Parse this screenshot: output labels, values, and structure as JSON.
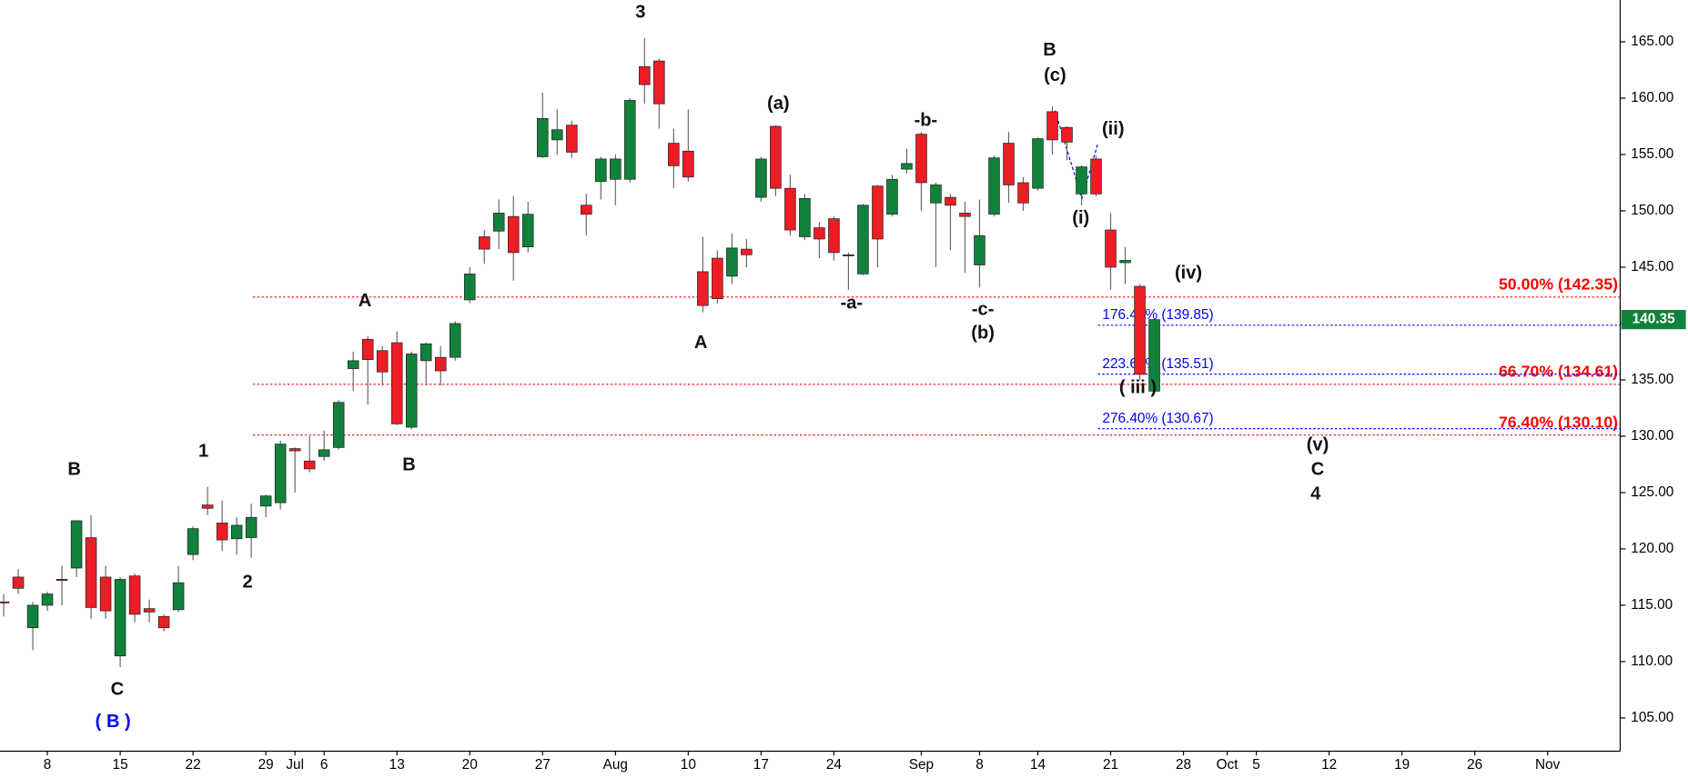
{
  "chart_data": {
    "type": "candlestick",
    "categories": [
      null,
      null,
      null,
      "8",
      null,
      null,
      null,
      null,
      "15",
      null,
      null,
      null,
      null,
      "22",
      null,
      null,
      null,
      null,
      "29",
      null,
      "Jul",
      null,
      "6",
      null,
      null,
      null,
      null,
      "13",
      null,
      null,
      null,
      null,
      "20",
      null,
      null,
      null,
      null,
      "27",
      null,
      null,
      null,
      null,
      "Aug",
      null,
      null,
      null,
      null,
      "10",
      null,
      null,
      null,
      null,
      "17",
      null,
      null,
      null,
      null,
      "24",
      null,
      null,
      null,
      null,
      null,
      "Sep",
      null,
      null,
      null,
      "8",
      null,
      null,
      null,
      "14",
      null,
      null,
      null,
      null,
      "21",
      null,
      null,
      null,
      null,
      "28",
      null,
      null,
      "Oct",
      null,
      "5",
      null,
      null,
      null,
      null,
      "12",
      null,
      null,
      null,
      null,
      "19",
      null,
      null,
      null,
      null,
      "26",
      null,
      null,
      null,
      null,
      "Nov",
      null,
      null,
      null,
      null
    ],
    "open": [
      115.3,
      117.5,
      113,
      115,
      117.3,
      118.3,
      121,
      117.5,
      110.5,
      117.6,
      114.7,
      114,
      114.6,
      119.5,
      123.9,
      122.3,
      120.9,
      121,
      123.8,
      124.1,
      128.9,
      127.8,
      128.2,
      129,
      136,
      138.6,
      137.6,
      138.3,
      130.8,
      136.7,
      137,
      137,
      142.1,
      147.7,
      148.2,
      149.5,
      146.8,
      154.8,
      156.3,
      157.6,
      150.5,
      152.6,
      152.8,
      152.8,
      162.8,
      163.3,
      156,
      155.3,
      144.6,
      145.8,
      144.2,
      146.6,
      151.2,
      157.5,
      152,
      147.7,
      148.5,
      149.3,
      146,
      144.4,
      152.2,
      149.7,
      153.7,
      156.8,
      150.7,
      151.2,
      149.8,
      145.2,
      149.7,
      156,
      152.5,
      152,
      158.8,
      157.4,
      151.5,
      154.6,
      148.3,
      145.4,
      143.3,
      134,
      null,
      null,
      null,
      null,
      null,
      null,
      null,
      null,
      null,
      null,
      null,
      null,
      null,
      null,
      null,
      null,
      null,
      null,
      null,
      null,
      null,
      null,
      null,
      null,
      null,
      null,
      null,
      null,
      null,
      null,
      null
    ],
    "high": [
      116,
      118.2,
      115.3,
      116.2,
      118.5,
      122.5,
      123,
      118.5,
      117.5,
      117.8,
      115.5,
      114.2,
      118.5,
      122,
      125.5,
      124.3,
      122.8,
      124,
      124.8,
      129.6,
      129,
      130,
      130.5,
      133.2,
      137.5,
      138.9,
      138,
      139.3,
      137.5,
      138.3,
      138,
      140.2,
      145,
      148.3,
      151,
      151.3,
      150.8,
      160.5,
      159,
      158,
      151.5,
      154.8,
      155,
      160,
      165.3,
      163.5,
      157.3,
      159,
      147.7,
      146.5,
      148,
      147.5,
      154.8,
      157.6,
      153.2,
      151.5,
      149,
      149.5,
      146.3,
      150.6,
      152.3,
      153.2,
      155.5,
      157,
      152.5,
      151.5,
      150.8,
      151,
      154.9,
      157,
      153,
      156.5,
      159.3,
      157.5,
      154,
      154.9,
      149.8,
      146.8,
      143.5,
      140.4,
      null,
      null,
      null,
      null,
      null,
      null,
      null,
      null,
      null,
      null,
      null,
      null,
      null,
      null,
      null,
      null,
      null,
      null,
      null,
      null,
      null,
      null,
      null,
      null,
      null,
      null,
      null,
      null,
      null,
      null,
      null
    ],
    "low": [
      114,
      116,
      111,
      114.5,
      115,
      117.5,
      113.8,
      113.8,
      109.5,
      113.5,
      113.5,
      112.7,
      114.4,
      119,
      123,
      119.8,
      119.5,
      119.2,
      122.8,
      123.5,
      125,
      126.8,
      127.8,
      128.8,
      134,
      132.8,
      134.5,
      131,
      130.6,
      134.5,
      134.5,
      136.7,
      141.8,
      145.3,
      146.6,
      143.8,
      146.3,
      154.7,
      155,
      154.7,
      147.8,
      151,
      150.5,
      152.5,
      159.5,
      157.3,
      152,
      152.6,
      141,
      141.8,
      143.5,
      145,
      150.8,
      151.3,
      147.8,
      147.4,
      145.8,
      145.6,
      143,
      144.3,
      145,
      149.5,
      153.3,
      150,
      145,
      146.5,
      144.5,
      143.2,
      149.5,
      150.7,
      150,
      151.8,
      155,
      154.5,
      150.5,
      151.3,
      143,
      143.5,
      135,
      133.8,
      null,
      null,
      null,
      null,
      null,
      null,
      null,
      null,
      null,
      null,
      null,
      null,
      null,
      null,
      null,
      null,
      null,
      null,
      null,
      null,
      null,
      null,
      null,
      null,
      null,
      null,
      null,
      null,
      null,
      null,
      null
    ],
    "close": [
      115.2,
      116.5,
      115,
      116,
      117.2,
      122.5,
      114.8,
      114.5,
      117.3,
      114.2,
      114.4,
      113,
      117,
      121.8,
      123.6,
      120.8,
      122.1,
      122.8,
      124.7,
      129.3,
      128.7,
      127.1,
      128.8,
      133,
      136.7,
      136.8,
      135.7,
      131.1,
      137.3,
      138.2,
      135.8,
      140,
      144.4,
      146.6,
      149.8,
      146.3,
      149.7,
      158.2,
      157.2,
      155.2,
      149.7,
      154.6,
      154.6,
      159.8,
      161.2,
      159.5,
      154,
      153,
      141.6,
      142.2,
      146.7,
      146.1,
      154.6,
      152,
      148.3,
      151.1,
      147.5,
      146.3,
      146.1,
      150.5,
      147.5,
      152.8,
      154.2,
      152.5,
      152.3,
      150.5,
      149.5,
      147.8,
      154.7,
      152.3,
      150.7,
      156.4,
      156.3,
      156.1,
      153.9,
      151.5,
      145,
      145.6,
      135.5,
      140.35,
      null,
      null,
      null,
      null,
      null,
      null,
      null,
      null,
      null,
      null,
      null,
      null,
      null,
      null,
      null,
      null,
      null,
      null,
      null,
      null,
      null,
      null,
      null,
      null,
      null,
      null,
      null,
      null,
      null,
      null,
      null
    ],
    "up_color": "#11823b",
    "down_color": "#ee1c25",
    "ylim": [
      102.05,
      168.71
    ],
    "yticks": [
      {
        "value": 105,
        "label": "105.00"
      },
      {
        "value": 110,
        "label": "110.00"
      },
      {
        "value": 115,
        "label": "115.00"
      },
      {
        "value": 120,
        "label": "120.00"
      },
      {
        "value": 125,
        "label": "125.00"
      },
      {
        "value": 130,
        "label": "130.00"
      },
      {
        "value": 135,
        "label": "135.00"
      },
      {
        "value": 140,
        "label": "140.00"
      },
      {
        "value": 145,
        "label": "145.00"
      },
      {
        "value": 150,
        "label": "150.00"
      },
      {
        "value": 155,
        "label": "155.00"
      },
      {
        "value": 160,
        "label": "160.00"
      },
      {
        "value": 165,
        "label": "165.00"
      }
    ],
    "last_label": "140.35",
    "retracement_levels": [
      {
        "label": "50.00% (142.35)",
        "value": 142.35,
        "color": "#ff0000"
      },
      {
        "label": "66.70% (134.61)",
        "value": 134.61,
        "color": "#ff0000"
      },
      {
        "label": "76.40% (130.10)",
        "value": 130.1,
        "color": "#ff0000"
      }
    ],
    "extension_levels": [
      {
        "label": "176.40% (139.85)",
        "value": 139.85,
        "color": "#0000ff"
      },
      {
        "label": "223.60% (135.51)",
        "value": 135.51,
        "color": "#0000ff"
      },
      {
        "label": "276.40% (130.67)",
        "value": 130.67,
        "color": "#0000ff"
      }
    ],
    "annotations": [
      {
        "text": "3"
      },
      {
        "text": "B"
      },
      {
        "text": "1"
      },
      {
        "text": "2"
      },
      {
        "text": "C"
      },
      {
        "text": "( B )",
        "color": "#0000ff"
      },
      {
        "text": "A"
      },
      {
        "text": "B"
      },
      {
        "text": "A"
      },
      {
        "text": "(a)"
      },
      {
        "text": "-a-"
      },
      {
        "text": "-b-"
      },
      {
        "text": "-c-"
      },
      {
        "text": "(b)"
      },
      {
        "text": "B"
      },
      {
        "text": "(c)"
      },
      {
        "text": "(i)"
      },
      {
        "text": "(ii)"
      },
      {
        "text": "( iii )"
      },
      {
        "text": "(iv)"
      },
      {
        "text": "(v)"
      },
      {
        "text": "C"
      },
      {
        "text": "4"
      }
    ]
  }
}
